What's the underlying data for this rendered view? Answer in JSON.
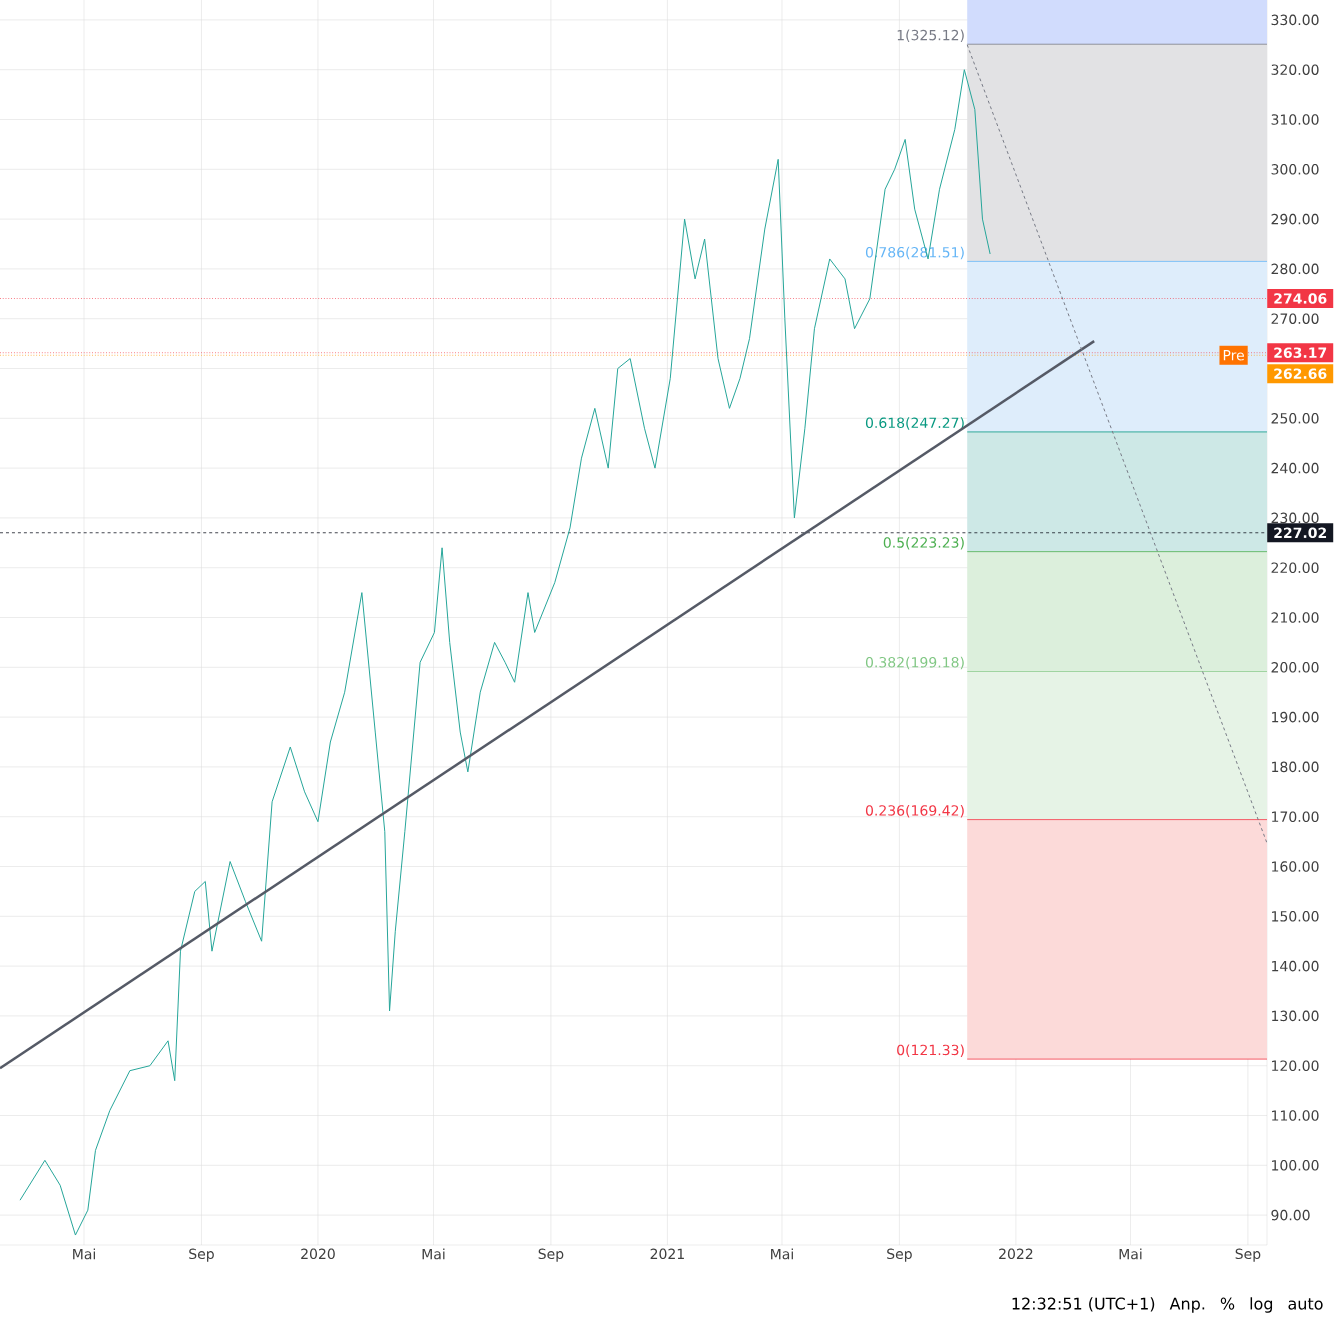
{
  "chart_data": {
    "type": "line",
    "xlim": [
      "2019-02-02",
      "2022-09-21"
    ],
    "ylim": [
      84,
      334
    ],
    "xticks": [
      {
        "value": "2019-05-01",
        "label": "Mai"
      },
      {
        "value": "2019-09-01",
        "label": "Sep"
      },
      {
        "value": "2020-01-01",
        "label": "2020"
      },
      {
        "value": "2020-05-01",
        "label": "Mai"
      },
      {
        "value": "2020-09-01",
        "label": "Sep"
      },
      {
        "value": "2021-01-01",
        "label": "2021"
      },
      {
        "value": "2021-05-01",
        "label": "Mai"
      },
      {
        "value": "2021-09-01",
        "label": "Sep"
      },
      {
        "value": "2022-01-01",
        "label": "2022"
      },
      {
        "value": "2022-05-01",
        "label": "Mai"
      },
      {
        "value": "2022-09-01",
        "label": "Sep"
      }
    ],
    "yticks": [
      {
        "value": 90,
        "label": "90.00"
      },
      {
        "value": 100,
        "label": "100.00"
      },
      {
        "value": 110,
        "label": "110.00"
      },
      {
        "value": 120,
        "label": "120.00"
      },
      {
        "value": 130,
        "label": "130.00"
      },
      {
        "value": 140,
        "label": "140.00"
      },
      {
        "value": 150,
        "label": "150.00"
      },
      {
        "value": 160,
        "label": "160.00"
      },
      {
        "value": 170,
        "label": "170.00"
      },
      {
        "value": 180,
        "label": "180.00"
      },
      {
        "value": 190,
        "label": "190.00"
      },
      {
        "value": 200,
        "label": "200.00"
      },
      {
        "value": 210,
        "label": "210.00"
      },
      {
        "value": 220,
        "label": "220.00"
      },
      {
        "value": 230,
        "label": "230.00"
      },
      {
        "value": 240,
        "label": "240.00"
      },
      {
        "value": 250,
        "label": "250.00"
      },
      {
        "value": 260,
        "label": null
      },
      {
        "value": 270,
        "label": "270.00"
      },
      {
        "value": 280,
        "label": "280.00"
      },
      {
        "value": 290,
        "label": "290.00"
      },
      {
        "value": 300,
        "label": "300.00"
      },
      {
        "value": 310,
        "label": "310.00"
      },
      {
        "value": 320,
        "label": "320.00"
      },
      {
        "value": 330,
        "label": "330.00"
      }
    ],
    "grid": true,
    "series": [
      {
        "color": "#26a69a",
        "x": [
          "2019-02-23",
          "2019-03-21",
          "2019-04-06",
          "2019-04-22",
          "2019-05-05",
          "2019-05-13",
          "2019-05-28",
          "2019-06-18",
          "2019-07-09",
          "2019-07-28",
          "2019-08-04",
          "2019-08-10",
          "2019-08-25",
          "2019-09-05",
          "2019-09-12",
          "2019-10-01",
          "2019-10-17",
          "2019-11-03",
          "2019-11-14",
          "2019-12-03",
          "2019-12-18",
          "2020-01-01",
          "2020-01-14",
          "2020-01-29",
          "2020-02-16",
          "2020-03-01",
          "2020-03-11",
          "2020-03-16",
          "2020-03-22",
          "2020-04-01",
          "2020-04-17",
          "2020-05-02",
          "2020-05-10",
          "2020-05-18",
          "2020-05-29",
          "2020-06-06",
          "2020-06-19",
          "2020-07-04",
          "2020-07-15",
          "2020-07-25",
          "2020-08-08",
          "2020-08-15",
          "2020-09-05",
          "2020-09-21",
          "2020-10-03",
          "2020-10-17",
          "2020-10-31",
          "2020-11-10",
          "2020-11-23",
          "2020-12-08",
          "2020-12-19",
          "2021-01-04",
          "2021-01-19",
          "2021-01-30",
          "2021-02-09",
          "2021-02-23",
          "2021-03-07",
          "2021-03-18",
          "2021-03-28",
          "2021-04-13",
          "2021-04-27",
          "2021-05-04",
          "2021-05-14",
          "2021-05-25",
          "2021-06-04",
          "2021-06-20",
          "2021-07-06",
          "2021-07-16",
          "2021-08-01",
          "2021-08-17",
          "2021-08-27",
          "2021-09-07",
          "2021-09-17",
          "2021-10-01",
          "2021-10-13",
          "2021-10-29",
          "2021-11-08",
          "2021-11-19",
          "2021-11-27",
          "2021-12-05"
        ],
        "values": [
          93,
          101,
          96,
          86,
          91,
          103,
          111,
          119,
          120,
          125,
          117,
          143,
          155,
          157,
          143,
          161,
          153,
          145,
          173,
          184,
          175,
          169,
          185,
          195,
          215,
          187,
          167,
          131,
          147,
          167,
          201,
          207,
          224,
          205,
          187,
          179,
          195,
          205,
          201,
          197,
          215,
          207,
          217,
          228,
          242,
          252,
          240,
          260,
          262,
          248,
          240,
          258,
          290,
          278,
          286,
          262,
          252,
          258,
          266,
          288,
          302,
          270,
          230,
          248,
          268,
          282,
          278,
          268,
          274,
          296,
          300,
          306,
          292,
          282,
          296,
          308,
          320,
          312,
          290,
          283
        ]
      },
      {
        "color": "#555a66",
        "x": [
          "2019-02-02",
          "2022-03-24"
        ],
        "values": [
          119.5,
          265.5
        ]
      },
      {
        "color": "#787b86",
        "line_style": "dashed",
        "x": [
          "2021-11-11",
          "2022-09-21"
        ],
        "values": [
          325.0,
          164.7
        ]
      }
    ],
    "bands": [
      {
        "axis": "y",
        "from": 325.12,
        "to": 334,
        "color": "#d1dcfd"
      },
      {
        "axis": "y",
        "from": 281.51,
        "to": 325.12,
        "color": "#e2e2e4"
      },
      {
        "axis": "y",
        "from": 247.27,
        "to": 281.51,
        "color": "#deedfb"
      },
      {
        "axis": "y",
        "from": 223.23,
        "to": 247.27,
        "color": "#cde8e6"
      },
      {
        "axis": "y",
        "from": 199.18,
        "to": 223.23,
        "color": "#dcefdc"
      },
      {
        "axis": "y",
        "from": 169.42,
        "to": 199.18,
        "color": "#e6f3e6"
      },
      {
        "axis": "y",
        "from": 121.33,
        "to": 169.42,
        "color": "#fcdad9"
      }
    ],
    "ref_lines": [
      {
        "axis": "y",
        "value": 325.12,
        "label": "1(325.12)",
        "color": "#787b86",
        "line_style": "solid"
      },
      {
        "axis": "y",
        "value": 281.51,
        "label": "0.786(281.51)",
        "color": "#64b5f6",
        "line_style": "solid"
      },
      {
        "axis": "y",
        "value": 247.27,
        "label": "0.618(247.27)",
        "color": "#089981",
        "line_style": "solid"
      },
      {
        "axis": "y",
        "value": 223.23,
        "label": "0.5(223.23)",
        "color": "#4caf50",
        "line_style": "solid"
      },
      {
        "axis": "y",
        "value": 199.18,
        "label": "0.382(199.18)",
        "color": "#81c784",
        "line_style": "solid"
      },
      {
        "axis": "y",
        "value": 169.42,
        "label": "0.236(169.42)",
        "color": "#f23645",
        "line_style": "solid"
      },
      {
        "axis": "y",
        "value": 121.33,
        "label": "0(121.33)",
        "color": "#f23645",
        "line_style": "solid"
      },
      {
        "axis": "y",
        "value": 274.06,
        "label": "274.06",
        "color": "#f23645",
        "line_style": "dotted"
      },
      {
        "axis": "y",
        "value": 263.17,
        "label": "263.17",
        "color": "#f23645",
        "line_style": "dotted"
      },
      {
        "axis": "y",
        "value": 262.66,
        "label": "262.66",
        "color": "#ff9800",
        "line_style": "dotted"
      },
      {
        "axis": "y",
        "value": 227.02,
        "label": "227.02",
        "color": "#131722",
        "line_style": "dashed"
      }
    ],
    "annotations": [
      {
        "text": "Pre",
        "x": "2022-09-01",
        "y": 262.66
      },
      "12:32:51 (UTC+1)",
      "Anp.",
      "%",
      "log",
      "auto"
    ]
  }
}
